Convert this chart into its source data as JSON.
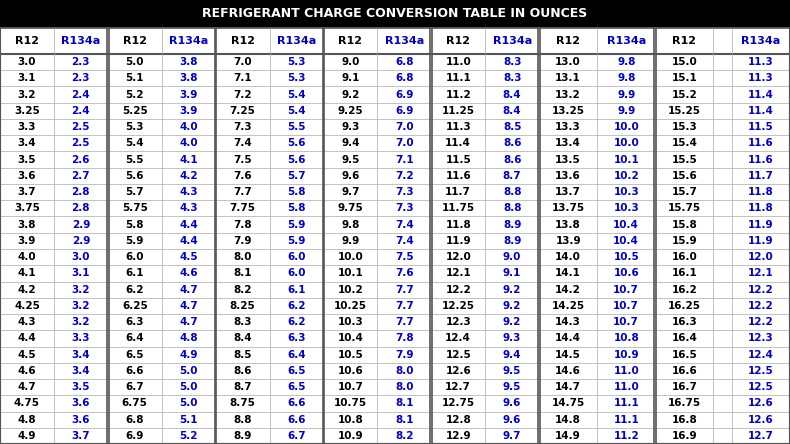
{
  "title": "REFRIGERANT CHARGE CONVERSION TABLE IN OUNCES",
  "title_bg": "#000000",
  "title_color": "#ffffff",
  "bg_color": "#ffffff",
  "border_color": "#aaaaaa",
  "thick_border": "#555555",
  "r12_color": "#000000",
  "r134a_color": "#0000cc",
  "col_headers": [
    "R12",
    "R134a",
    "R12",
    "R134a",
    "R12",
    "R134a",
    "R12",
    "R134a",
    "R12",
    "R134a",
    "R12",
    "R134a",
    "R12",
    "",
    "R134a"
  ],
  "col_is_r134a": [
    false,
    true,
    false,
    true,
    false,
    true,
    false,
    true,
    false,
    true,
    false,
    true,
    false,
    false,
    true
  ],
  "col_widths_raw": [
    52,
    52,
    52,
    52,
    52,
    52,
    52,
    52,
    52,
    52,
    56,
    56,
    56,
    18,
    56
  ],
  "rows": [
    [
      "3.0",
      "2.3",
      "5.0",
      "3.8",
      "7.0",
      "5.3",
      "9.0",
      "6.8",
      "11.0",
      "8.3",
      "13.0",
      "9.8",
      "15.0",
      "",
      "11.3"
    ],
    [
      "3.1",
      "2.3",
      "5.1",
      "3.8",
      "7.1",
      "5.3",
      "9.1",
      "6.8",
      "11.1",
      "8.3",
      "13.1",
      "9.8",
      "15.1",
      "",
      "11.3"
    ],
    [
      "3.2",
      "2.4",
      "5.2",
      "3.9",
      "7.2",
      "5.4",
      "9.2",
      "6.9",
      "11.2",
      "8.4",
      "13.2",
      "9.9",
      "15.2",
      "",
      "11.4"
    ],
    [
      "3.25",
      "2.4",
      "5.25",
      "3.9",
      "7.25",
      "5.4",
      "9.25",
      "6.9",
      "11.25",
      "8.4",
      "13.25",
      "9.9",
      "15.25",
      "",
      "11.4"
    ],
    [
      "3.3",
      "2.5",
      "5.3",
      "4.0",
      "7.3",
      "5.5",
      "9.3",
      "7.0",
      "11.3",
      "8.5",
      "13.3",
      "10.0",
      "15.3",
      "",
      "11.5"
    ],
    [
      "3.4",
      "2.5",
      "5.4",
      "4.0",
      "7.4",
      "5.6",
      "9.4",
      "7.0",
      "11.4",
      "8.6",
      "13.4",
      "10.0",
      "15.4",
      "",
      "11.6"
    ],
    [
      "3.5",
      "2.6",
      "5.5",
      "4.1",
      "7.5",
      "5.6",
      "9.5",
      "7.1",
      "11.5",
      "8.6",
      "13.5",
      "10.1",
      "15.5",
      "",
      "11.6"
    ],
    [
      "3.6",
      "2.7",
      "5.6",
      "4.2",
      "7.6",
      "5.7",
      "9.6",
      "7.2",
      "11.6",
      "8.7",
      "13.6",
      "10.2",
      "15.6",
      "",
      "11.7"
    ],
    [
      "3.7",
      "2.8",
      "5.7",
      "4.3",
      "7.7",
      "5.8",
      "9.7",
      "7.3",
      "11.7",
      "8.8",
      "13.7",
      "10.3",
      "15.7",
      "",
      "11.8"
    ],
    [
      "3.75",
      "2.8",
      "5.75",
      "4.3",
      "7.75",
      "5.8",
      "9.75",
      "7.3",
      "11.75",
      "8.8",
      "13.75",
      "10.3",
      "15.75",
      "",
      "11.8"
    ],
    [
      "3.8",
      "2.9",
      "5.8",
      "4.4",
      "7.8",
      "5.9",
      "9.8",
      "7.4",
      "11.8",
      "8.9",
      "13.8",
      "10.4",
      "15.8",
      "",
      "11.9"
    ],
    [
      "3.9",
      "2.9",
      "5.9",
      "4.4",
      "7.9",
      "5.9",
      "9.9",
      "7.4",
      "11.9",
      "8.9",
      "13.9",
      "10.4",
      "15.9",
      "",
      "11.9"
    ],
    [
      "4.0",
      "3.0",
      "6.0",
      "4.5",
      "8.0",
      "6.0",
      "10.0",
      "7.5",
      "12.0",
      "9.0",
      "14.0",
      "10.5",
      "16.0",
      "",
      "12.0"
    ],
    [
      "4.1",
      "3.1",
      "6.1",
      "4.6",
      "8.1",
      "6.0",
      "10.1",
      "7.6",
      "12.1",
      "9.1",
      "14.1",
      "10.6",
      "16.1",
      "",
      "12.1"
    ],
    [
      "4.2",
      "3.2",
      "6.2",
      "4.7",
      "8.2",
      "6.1",
      "10.2",
      "7.7",
      "12.2",
      "9.2",
      "14.2",
      "10.7",
      "16.2",
      "",
      "12.2"
    ],
    [
      "4.25",
      "3.2",
      "6.25",
      "4.7",
      "8.25",
      "6.2",
      "10.25",
      "7.7",
      "12.25",
      "9.2",
      "14.25",
      "10.7",
      "16.25",
      "",
      "12.2"
    ],
    [
      "4.3",
      "3.2",
      "6.3",
      "4.7",
      "8.3",
      "6.2",
      "10.3",
      "7.7",
      "12.3",
      "9.2",
      "14.3",
      "10.7",
      "16.3",
      "",
      "12.2"
    ],
    [
      "4.4",
      "3.3",
      "6.4",
      "4.8",
      "8.4",
      "6.3",
      "10.4",
      "7.8",
      "12.4",
      "9.3",
      "14.4",
      "10.8",
      "16.4",
      "",
      "12.3"
    ],
    [
      "4.5",
      "3.4",
      "6.5",
      "4.9",
      "8.5",
      "6.4",
      "10.5",
      "7.9",
      "12.5",
      "9.4",
      "14.5",
      "10.9",
      "16.5",
      "",
      "12.4"
    ],
    [
      "4.6",
      "3.4",
      "6.6",
      "5.0",
      "8.6",
      "6.5",
      "10.6",
      "8.0",
      "12.6",
      "9.5",
      "14.6",
      "11.0",
      "16.6",
      "",
      "12.5"
    ],
    [
      "4.7",
      "3.5",
      "6.7",
      "5.0",
      "8.7",
      "6.5",
      "10.7",
      "8.0",
      "12.7",
      "9.5",
      "14.7",
      "11.0",
      "16.7",
      "",
      "12.5"
    ],
    [
      "4.75",
      "3.6",
      "6.75",
      "5.0",
      "8.75",
      "6.6",
      "10.75",
      "8.1",
      "12.75",
      "9.6",
      "14.75",
      "11.1",
      "16.75",
      "",
      "12.6"
    ],
    [
      "4.8",
      "3.6",
      "6.8",
      "5.1",
      "8.8",
      "6.6",
      "10.8",
      "8.1",
      "12.8",
      "9.6",
      "14.8",
      "11.1",
      "16.8",
      "",
      "12.6"
    ],
    [
      "4.9",
      "3.7",
      "6.9",
      "5.2",
      "8.9",
      "6.7",
      "10.9",
      "8.2",
      "12.9",
      "9.7",
      "14.9",
      "11.2",
      "16.9",
      "",
      "12.7"
    ]
  ],
  "title_fontsize": 9.0,
  "header_fontsize": 8.0,
  "data_fontsize": 7.5
}
